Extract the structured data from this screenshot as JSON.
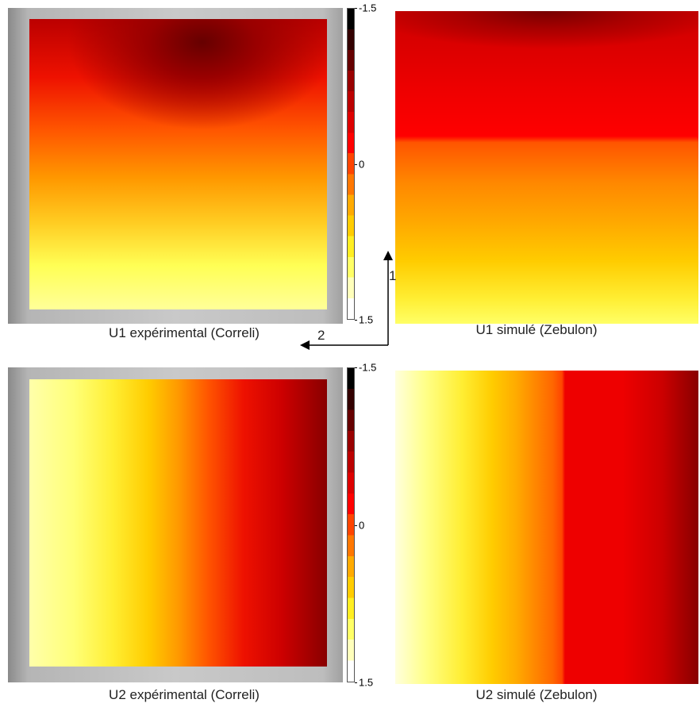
{
  "panels": [
    {
      "caption": "U1 expérimental (Correli)",
      "colorbar_ticks": [
        -1.5,
        0,
        1.5
      ]
    },
    {
      "caption": "U1 simulé (Zebulon)"
    },
    {
      "caption": "U2 expérimental (Correli)",
      "colorbar_ticks": [
        -1.5,
        0,
        1.5
      ]
    },
    {
      "caption": "U2 simulé (Zebulon)"
    }
  ],
  "axes": {
    "vertical": "1",
    "horizontal": "2"
  }
}
